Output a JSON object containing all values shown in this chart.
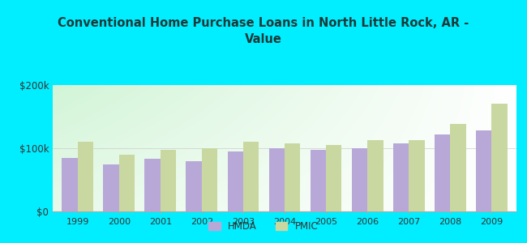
{
  "title": "Conventional Home Purchase Loans in North Little Rock, AR -\nValue",
  "years": [
    1999,
    2000,
    2001,
    2002,
    2003,
    2004,
    2005,
    2006,
    2007,
    2008,
    2009
  ],
  "hmda": [
    85000,
    75000,
    83000,
    80000,
    95000,
    100000,
    97000,
    100000,
    108000,
    122000,
    128000
  ],
  "pmic": [
    110000,
    90000,
    97000,
    100000,
    110000,
    108000,
    105000,
    113000,
    113000,
    138000,
    170000
  ],
  "hmda_color": "#b8a8d8",
  "pmic_color": "#c8d8a0",
  "bg_outer": "#00eeff",
  "ylim": [
    0,
    200000
  ],
  "ytick_labels": [
    "$0",
    "$100k",
    "$200k"
  ],
  "bar_width": 0.38,
  "title_fontsize": 10.5,
  "title_color": "#1a3a3a",
  "legend_labels": [
    "HMDA",
    "PMIC"
  ]
}
